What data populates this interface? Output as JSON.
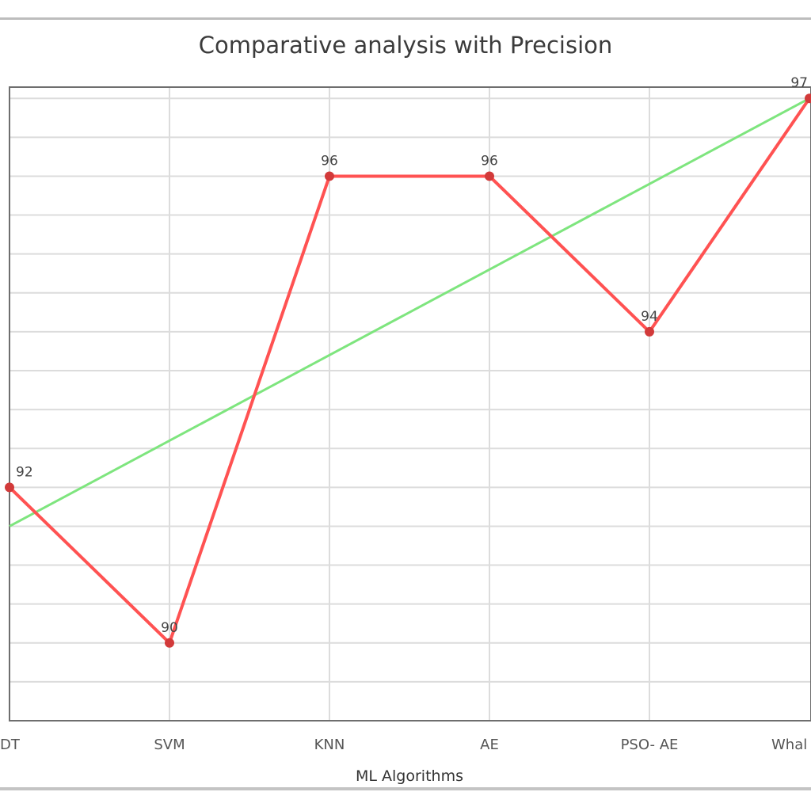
{
  "chart_data": {
    "type": "line",
    "title": "Comparative analysis with Precision",
    "xlabel": "ML Algorithms",
    "ylabel": "",
    "categories": [
      "DT",
      "SVM",
      "KNN",
      "AE",
      "PSO- AE",
      "Whal"
    ],
    "series": [
      {
        "values": [
          92,
          90,
          96,
          96,
          94,
          97
        ],
        "data_labels": [
          "92",
          "90",
          "96",
          "96",
          "94",
          "97"
        ],
        "color": "#ff5252"
      }
    ],
    "trendline": {
      "start": 91.5,
      "end": 97,
      "color": "#7ee57e"
    },
    "ylim": [
      89,
      98
    ],
    "grid": true,
    "colors": {
      "frame": "#6e6e6e",
      "grid": "#dcdcdc",
      "marker": "#d23a3a"
    }
  }
}
